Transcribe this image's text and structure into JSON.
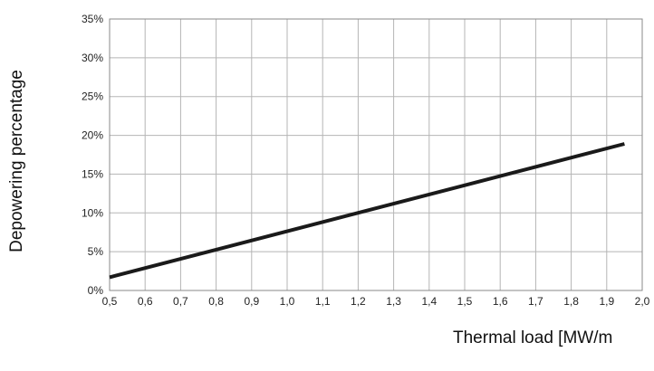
{
  "chart_data": {
    "type": "line",
    "xlabel": "Thermal load [MW/m",
    "ylabel": "Depowering percentage",
    "xlim": [
      0.5,
      2.0
    ],
    "ylim": [
      0,
      35
    ],
    "x_ticks": [
      "0,5",
      "0,6",
      "0,7",
      "0,8",
      "0,9",
      "1,0",
      "1,1",
      "1,2",
      "1,3",
      "1,4",
      "1,5",
      "1,6",
      "1,7",
      "1,8",
      "1,9",
      "2,0"
    ],
    "y_ticks": [
      "0%",
      "5%",
      "10%",
      "15%",
      "20%",
      "25%",
      "30%",
      "35%"
    ],
    "grid": true,
    "series": [
      {
        "x": [
          0.5,
          1.95
        ],
        "y": [
          1.7,
          18.9
        ]
      }
    ],
    "colors": {
      "line": "#1a1a1a",
      "grid": "#b5b5b5",
      "frame": "#888888"
    }
  }
}
